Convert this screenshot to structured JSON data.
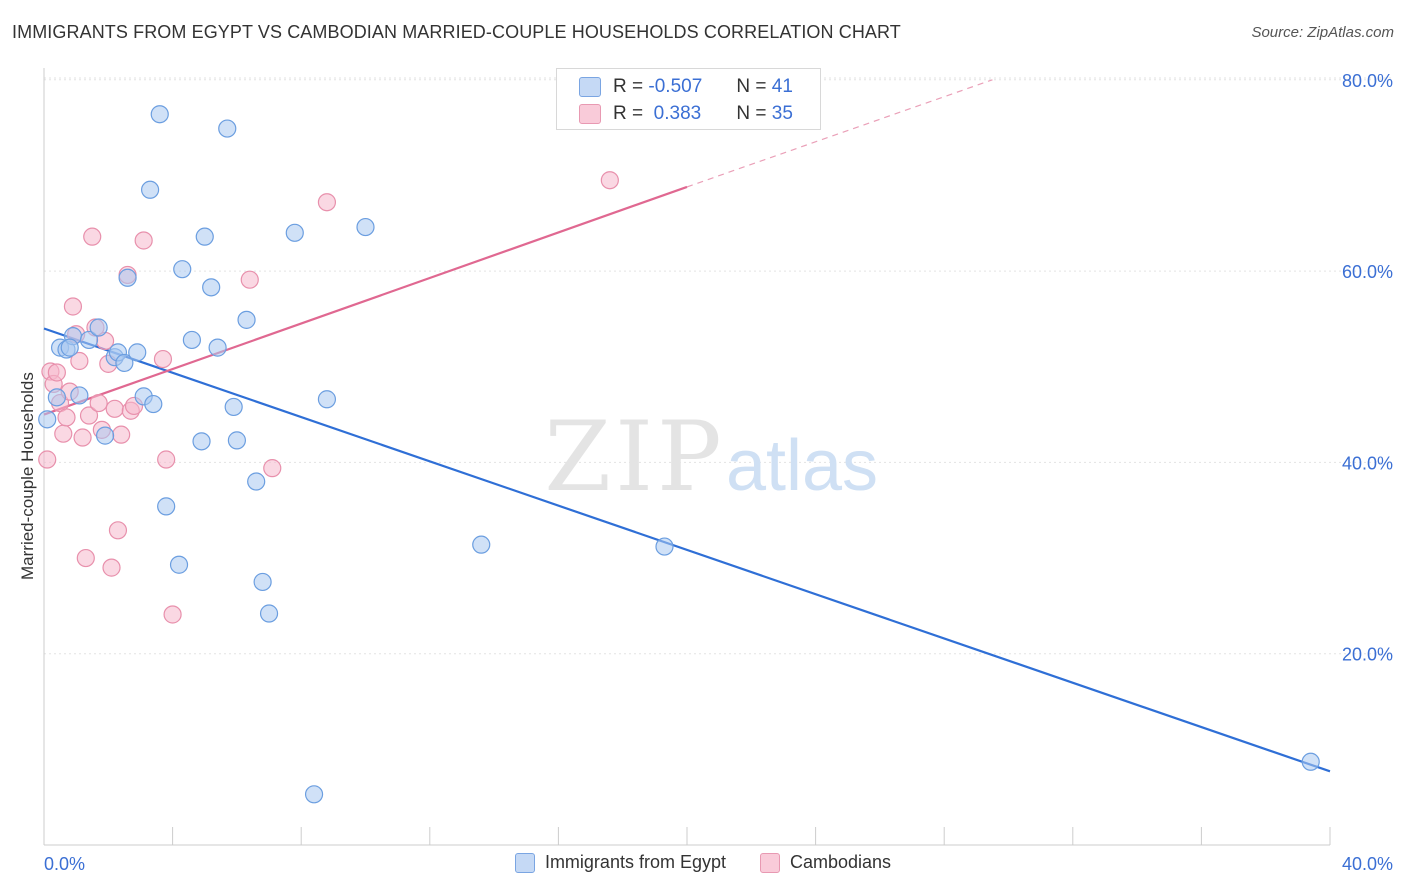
{
  "header": {
    "title": "IMMIGRANTS FROM EGYPT VS CAMBODIAN MARRIED-COUPLE HOUSEHOLDS CORRELATION CHART",
    "source": "Source: ZipAtlas.com"
  },
  "watermark": {
    "zip": "ZIP",
    "atlas": "atlas"
  },
  "legend": {
    "rows": [
      {
        "r_label": "R =",
        "r_value": "-0.507",
        "n_label": "N =",
        "n_value": "41"
      },
      {
        "r_label": "R =",
        "r_value": " 0.383",
        "n_label": "N =",
        "n_value": "35"
      }
    ]
  },
  "bottom_legend": {
    "series1": "Immigrants from Egypt",
    "series2": "Cambodians"
  },
  "colors": {
    "blue_fill": "#aac8f0",
    "blue_stroke": "#6b9ee0",
    "blue_line": "#2f6fd6",
    "pink_fill": "#f5b8cc",
    "pink_stroke": "#e890ac",
    "pink_line": "#e06891",
    "tick_label": "#3b6fd4",
    "grid": "#e3e3e3"
  },
  "chart_data": {
    "type": "scatter",
    "title": "IMMIGRANTS FROM EGYPT VS CAMBODIAN MARRIED-COUPLE HOUSEHOLDS CORRELATION CHART",
    "xlabel": "",
    "ylabel": "Married-couple Households",
    "xlim": [
      0,
      40
    ],
    "ylim": [
      0,
      84
    ],
    "x_tick_labels": [
      {
        "value": 0,
        "label": "0.0%"
      },
      {
        "value": 40,
        "label": "40.0%"
      }
    ],
    "y_tick_labels": [
      {
        "value": 20,
        "label": "20.0%"
      },
      {
        "value": 40,
        "label": "40.0%"
      },
      {
        "value": 60,
        "label": "60.0%"
      },
      {
        "value": 80,
        "label": "80.0%"
      }
    ],
    "grid": true,
    "series": [
      {
        "name": "Immigrants from Egypt",
        "r": -0.507,
        "n": 41,
        "trend": {
          "x0": 0,
          "y0": 54.0,
          "x1": 40,
          "y1": 7.7,
          "style": "solid"
        },
        "points": [
          [
            0.1,
            44.5
          ],
          [
            0.4,
            46.8
          ],
          [
            0.5,
            52.0
          ],
          [
            0.7,
            51.8
          ],
          [
            0.9,
            53.2
          ],
          [
            1.1,
            47.0
          ],
          [
            1.4,
            52.8
          ],
          [
            1.7,
            54.1
          ],
          [
            1.9,
            42.8
          ],
          [
            2.2,
            51.0
          ],
          [
            2.3,
            51.5
          ],
          [
            2.5,
            50.4
          ],
          [
            2.9,
            51.5
          ],
          [
            3.1,
            46.9
          ],
          [
            3.4,
            46.1
          ],
          [
            3.3,
            68.5
          ],
          [
            3.6,
            76.4
          ],
          [
            3.8,
            35.4
          ],
          [
            4.2,
            29.3
          ],
          [
            4.3,
            60.2
          ],
          [
            4.6,
            52.8
          ],
          [
            4.9,
            42.2
          ],
          [
            5.0,
            63.6
          ],
          [
            5.2,
            58.3
          ],
          [
            5.4,
            52.0
          ],
          [
            5.7,
            74.9
          ],
          [
            5.9,
            45.8
          ],
          [
            6.0,
            42.3
          ],
          [
            6.3,
            54.9
          ],
          [
            6.6,
            38.0
          ],
          [
            6.8,
            27.5
          ],
          [
            7.0,
            24.2
          ],
          [
            7.8,
            64.0
          ],
          [
            8.4,
            5.3
          ],
          [
            8.8,
            46.6
          ],
          [
            10.0,
            64.6
          ],
          [
            13.6,
            31.4
          ],
          [
            19.3,
            31.2
          ],
          [
            39.4,
            8.7
          ],
          [
            2.6,
            59.3
          ],
          [
            0.8,
            52.0
          ]
        ]
      },
      {
        "name": "Cambodians",
        "r": 0.383,
        "n": 35,
        "trend": {
          "x0": 0,
          "y0": 45.0,
          "x1": 20,
          "y1": 68.8,
          "style": "solid",
          "ext_x1": 29.5,
          "ext_y1": 80.0,
          "ext_style": "dashed"
        },
        "points": [
          [
            0.1,
            40.3
          ],
          [
            0.2,
            49.5
          ],
          [
            0.3,
            48.2
          ],
          [
            0.4,
            49.4
          ],
          [
            0.5,
            46.2
          ],
          [
            0.6,
            43.0
          ],
          [
            0.7,
            44.7
          ],
          [
            0.8,
            47.4
          ],
          [
            0.9,
            56.3
          ],
          [
            1.0,
            53.4
          ],
          [
            1.1,
            50.6
          ],
          [
            1.2,
            42.6
          ],
          [
            1.3,
            30.0
          ],
          [
            1.4,
            44.9
          ],
          [
            1.5,
            63.6
          ],
          [
            1.6,
            54.1
          ],
          [
            1.7,
            46.2
          ],
          [
            1.8,
            43.4
          ],
          [
            1.9,
            52.7
          ],
          [
            2.0,
            50.3
          ],
          [
            2.1,
            29.0
          ],
          [
            2.2,
            45.6
          ],
          [
            2.3,
            32.9
          ],
          [
            2.4,
            42.9
          ],
          [
            2.6,
            59.6
          ],
          [
            2.7,
            45.4
          ],
          [
            2.8,
            45.9
          ],
          [
            3.1,
            63.2
          ],
          [
            3.7,
            50.8
          ],
          [
            3.8,
            40.3
          ],
          [
            4.0,
            24.1
          ],
          [
            6.4,
            59.1
          ],
          [
            7.1,
            39.4
          ],
          [
            8.8,
            67.2
          ],
          [
            17.6,
            69.5
          ]
        ]
      }
    ]
  }
}
